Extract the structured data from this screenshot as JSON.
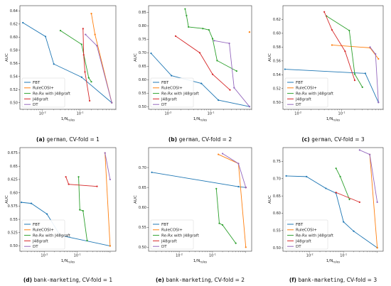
{
  "colors": {
    "FBT": "#1f77b4",
    "RuleCOSI+": "#ff7f0e",
    "Re-Rx with J48graft": "#2ca02c",
    "J48graft": "#d62728",
    "DT": "#9467bd"
  },
  "legend_entries": [
    "FBT",
    "RuleCOSI+",
    "Re-Rx with J48graft",
    "J48graft",
    "DT"
  ],
  "chart_data": [
    {
      "type": "line",
      "x_scale": "log",
      "xlabel": "1/N_rules",
      "ylabel": "AUC",
      "xlim": [
        0.0025,
        0.9
      ],
      "ylim": [
        0.49,
        0.648
      ],
      "yticks": [
        0.5,
        0.52,
        0.54,
        0.56,
        0.58,
        0.6,
        0.62,
        0.64
      ],
      "xticks": [
        0.01,
        0.1
      ],
      "legend_position": "lower-left",
      "caption": {
        "label": "(a)",
        "dataset": "german",
        "fold": ", CV-fold = 1"
      },
      "series": [
        {
          "name": "FBT",
          "x": [
            0.003,
            0.012,
            0.02,
            0.11,
            0.7
          ],
          "y": [
            0.622,
            0.601,
            0.559,
            0.539,
            0.5
          ]
        },
        {
          "name": "RuleCOSI+",
          "x": [
            0.2,
            0.25,
            0.7
          ],
          "y": [
            0.636,
            0.604,
            0.5
          ]
        },
        {
          "name": "Re-Rx with J48graft",
          "x": [
            0.03,
            0.11,
            0.17,
            0.2
          ],
          "y": [
            0.61,
            0.589,
            0.538,
            0.532
          ]
        },
        {
          "name": "J48graft",
          "x": [
            0.12,
            0.125,
            0.135,
            0.18
          ],
          "y": [
            0.613,
            0.573,
            0.547,
            0.503
          ]
        },
        {
          "name": "DT",
          "x": [
            0.14,
            0.28,
            0.7
          ],
          "y": [
            0.604,
            0.587,
            0.5
          ]
        }
      ]
    },
    {
      "type": "line",
      "x_scale": "log",
      "xlabel": "1/N_rules",
      "ylabel": "AUC",
      "xlim": [
        0.0035,
        0.9
      ],
      "ylim": [
        0.49,
        0.875
      ],
      "yticks": [
        0.5,
        0.55,
        0.6,
        0.65,
        0.7,
        0.75,
        0.8,
        0.85
      ],
      "xticks": [
        0.01,
        0.1
      ],
      "legend_position": "lower-left",
      "caption": {
        "label": "(b)",
        "dataset": "german",
        "fold": ", CV-fold = 2"
      },
      "series": [
        {
          "name": "FBT",
          "x": [
            0.004,
            0.012,
            0.06,
            0.15,
            0.8
          ],
          "y": [
            0.698,
            0.615,
            0.586,
            0.524,
            0.5
          ]
        },
        {
          "name": "RuleCOSI+",
          "x": [
            0.8,
            0.8
          ],
          "y": [
            0.777,
            0.777
          ]
        },
        {
          "name": "Re-Rx with J48graft",
          "x": [
            0.025,
            0.027,
            0.03,
            0.065,
            0.09,
            0.11,
            0.14,
            0.4
          ],
          "y": [
            0.863,
            0.838,
            0.796,
            0.79,
            0.785,
            0.752,
            0.671,
            0.632
          ]
        },
        {
          "name": "J48graft",
          "x": [
            0.015,
            0.055,
            0.11,
            0.28
          ],
          "y": [
            0.762,
            0.7,
            0.62,
            0.562
          ]
        },
        {
          "name": "DT",
          "x": [
            0.12,
            0.27,
            0.35,
            0.8
          ],
          "y": [
            0.745,
            0.735,
            0.57,
            0.5
          ]
        }
      ]
    },
    {
      "type": "line",
      "x_scale": "log",
      "xlabel": "1/N_rules",
      "ylabel": "AUC",
      "xlim": [
        0.0045,
        0.9
      ],
      "ylim": [
        0.49,
        0.64
      ],
      "yticks": [
        0.5,
        0.52,
        0.54,
        0.56,
        0.58,
        0.6,
        0.62
      ],
      "xticks": [
        0.01,
        0.1
      ],
      "legend_position": "lower-left",
      "caption": {
        "label": "(c)",
        "dataset": "german",
        "fold": ", CV-fold = 3"
      },
      "series": [
        {
          "name": "FBT",
          "x": [
            0.005,
            0.35,
            0.7
          ],
          "y": [
            0.548,
            0.542,
            0.5
          ]
        },
        {
          "name": "RuleCOSI+",
          "x": [
            0.06,
            0.45,
            0.7
          ],
          "y": [
            0.583,
            0.579,
            0.563
          ]
        },
        {
          "name": "Re-Rx with J48graft",
          "x": [
            0.045,
            0.15,
            0.2,
            0.3
          ],
          "y": [
            0.625,
            0.604,
            0.541,
            0.522
          ]
        },
        {
          "name": "J48graft",
          "x": [
            0.04,
            0.06,
            0.12,
            0.2
          ],
          "y": [
            0.631,
            0.605,
            0.574,
            0.532
          ]
        },
        {
          "name": "DT",
          "x": [
            0.45,
            0.6,
            0.7
          ],
          "y": [
            0.58,
            0.57,
            0.5
          ]
        }
      ]
    },
    {
      "type": "line",
      "x_scale": "log",
      "xlabel": "1/N_rules",
      "ylabel": "AUC",
      "xlim": [
        0.0018,
        1.5
      ],
      "ylim": [
        0.49,
        0.685
      ],
      "yticks": [
        0.5,
        0.525,
        0.55,
        0.575,
        0.6,
        0.625,
        0.65,
        0.675
      ],
      "xticks": [
        0.01,
        0.1
      ],
      "legend_position": "lower-left",
      "caption": {
        "label": "(d)",
        "dataset": "bank-marketing",
        "fold": ", CV-fold = 1"
      },
      "series": [
        {
          "name": "FBT",
          "x": [
            0.002,
            0.004,
            0.012,
            0.03,
            1.0
          ],
          "y": [
            0.582,
            0.58,
            0.56,
            0.52,
            0.5
          ]
        },
        {
          "name": "RuleCOSI+",
          "x": [
            0.7,
            1.0
          ],
          "y": [
            0.675,
            0.5
          ]
        },
        {
          "name": "Re-Rx with J48graft",
          "x": [
            0.11,
            0.12,
            0.15,
            0.2
          ],
          "y": [
            0.63,
            0.568,
            0.566,
            0.51
          ]
        },
        {
          "name": "J48graft",
          "x": [
            0.045,
            0.055,
            0.4
          ],
          "y": [
            0.63,
            0.616,
            0.612
          ]
        },
        {
          "name": "DT",
          "x": [
            0.7,
            1.0
          ],
          "y": [
            0.675,
            0.625
          ]
        }
      ]
    },
    {
      "type": "line",
      "x_scale": "log",
      "xlabel": "1/N_rules",
      "ylabel": "AUC",
      "xlim": [
        0.0012,
        1.5
      ],
      "ylim": [
        0.49,
        0.75
      ],
      "yticks": [
        0.5,
        0.55,
        0.6,
        0.65,
        0.7
      ],
      "xticks": [
        0.01,
        0.1
      ],
      "legend_position": "lower-left",
      "caption": {
        "label": "(e)",
        "dataset": "bank-marketing",
        "fold": ", CV-fold = 2"
      },
      "series": [
        {
          "name": "FBT",
          "x": [
            0.0015,
            0.6,
            1.0
          ],
          "y": [
            0.688,
            0.652,
            0.65
          ]
        },
        {
          "name": "RuleCOSI+",
          "x": [
            0.15,
            0.6,
            1.0
          ],
          "y": [
            0.733,
            0.71,
            0.5
          ]
        },
        {
          "name": "Re-Rx with J48graft",
          "x": [
            0.13,
            0.16,
            0.2,
            0.5
          ],
          "y": [
            0.647,
            0.56,
            0.556,
            0.51
          ]
        },
        {
          "name": "J48graft",
          "x": [
            1.0,
            1.0
          ],
          "y": [
            0.65,
            0.65
          ]
        },
        {
          "name": "DT",
          "x": [
            0.2,
            0.6,
            1.0
          ],
          "y": [
            0.735,
            0.71,
            0.65
          ]
        }
      ]
    },
    {
      "type": "line",
      "x_scale": "log",
      "xlabel": "1/N_rules",
      "ylabel": "AUC",
      "xlim": [
        0.0016,
        1.5
      ],
      "ylim": [
        0.49,
        0.79
      ],
      "yticks": [
        0.5,
        0.55,
        0.6,
        0.65,
        0.7,
        0.75
      ],
      "xticks": [
        0.01,
        0.1
      ],
      "legend_position": "lower-left",
      "caption": {
        "label": "(f)",
        "dataset": "bank-marketing",
        "fold": ", CV-fold = 3"
      },
      "series": [
        {
          "name": "FBT",
          "x": [
            0.002,
            0.008,
            0.03,
            0.06,
            0.1,
            0.2,
            1.0
          ],
          "y": [
            0.708,
            0.706,
            0.672,
            0.658,
            0.575,
            0.548,
            0.5
          ]
        },
        {
          "name": "RuleCOSI+",
          "x": [
            0.6,
            1.0
          ],
          "y": [
            0.77,
            0.5
          ]
        },
        {
          "name": "Re-Rx with J48graft",
          "x": [
            0.06,
            0.08,
            0.15
          ],
          "y": [
            0.73,
            0.706,
            0.64
          ]
        },
        {
          "name": "J48graft",
          "x": [
            0.06,
            0.3
          ],
          "y": [
            0.66,
            0.632
          ]
        },
        {
          "name": "DT",
          "x": [
            0.3,
            0.6,
            1.0
          ],
          "y": [
            0.783,
            0.77,
            0.632
          ]
        }
      ]
    }
  ]
}
